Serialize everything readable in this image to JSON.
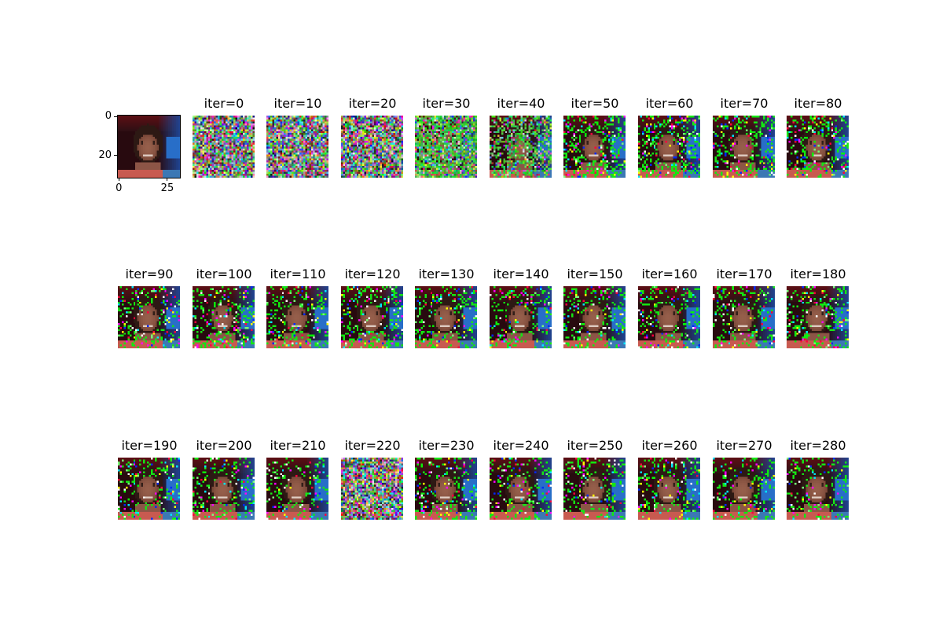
{
  "chart_data": {
    "type": "image-grid",
    "grid": {
      "rows": 3,
      "cols": 10
    },
    "reference_image": {
      "description_axis": true,
      "x_ticks": [
        "0",
        "25"
      ],
      "y_ticks": [
        "0",
        "20"
      ],
      "image_size": 32
    },
    "panels": [
      {
        "title": "iter=0",
        "noise": 1.0
      },
      {
        "title": "iter=10",
        "noise": 1.0
      },
      {
        "title": "iter=20",
        "noise": 1.0
      },
      {
        "title": "iter=30",
        "noise": 0.85
      },
      {
        "title": "iter=40",
        "noise": 0.55
      },
      {
        "title": "iter=50",
        "noise": 0.35
      },
      {
        "title": "iter=60",
        "noise": 0.3
      },
      {
        "title": "iter=70",
        "noise": 0.28
      },
      {
        "title": "iter=80",
        "noise": 0.26
      },
      {
        "title": "iter=90",
        "noise": 0.25
      },
      {
        "title": "iter=100",
        "noise": 0.25
      },
      {
        "title": "iter=110",
        "noise": 0.24
      },
      {
        "title": "iter=120",
        "noise": 0.24
      },
      {
        "title": "iter=130",
        "noise": 0.23
      },
      {
        "title": "iter=140",
        "noise": 0.23
      },
      {
        "title": "iter=150",
        "noise": 0.22
      },
      {
        "title": "iter=160",
        "noise": 0.22
      },
      {
        "title": "iter=170",
        "noise": 0.21
      },
      {
        "title": "iter=180",
        "noise": 0.21
      },
      {
        "title": "iter=190",
        "noise": 0.2
      },
      {
        "title": "iter=200",
        "noise": 0.2
      },
      {
        "title": "iter=210",
        "noise": 0.2
      },
      {
        "title": "iter=220",
        "noise": 0.95
      },
      {
        "title": "iter=230",
        "noise": 0.22
      },
      {
        "title": "iter=240",
        "noise": 0.2
      },
      {
        "title": "iter=250",
        "noise": 0.2
      },
      {
        "title": "iter=260",
        "noise": 0.2
      },
      {
        "title": "iter=270",
        "noise": 0.2
      },
      {
        "title": "iter=280",
        "noise": 0.2
      }
    ]
  }
}
